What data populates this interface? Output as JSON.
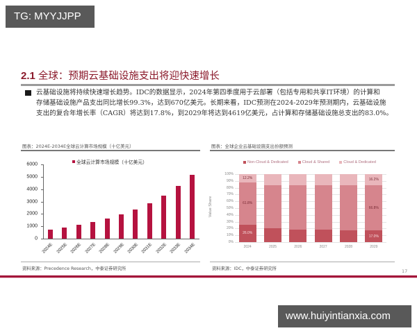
{
  "watermarks": {
    "top": "TG: MYYJJPP",
    "bottom": "www.huiyintianxia.com"
  },
  "header": {
    "section_number": "2.1",
    "title": "全球：预期云基础设施支出将迎快速增长"
  },
  "paragraph": {
    "lines": [
      "云基础设施将持续快速增长趋势。IDC的数据显示，2024年第四季度用于云部署（包括专用和共享IT环境）的计算和",
      "存储基础设施产品支出同比增长99.3%，达到670亿美元。长期来看，IDC预测在2024-2029年预测期内，云基础设施",
      "支出的复合年增长率（CAGR）将达到17.8%，到2029年将达到4619亿美元，占计算和存储基础设施总支出的83.0%。"
    ]
  },
  "left_panel": {
    "title": "图表：2024E-2034E全球云计算市场规模（十亿美元）",
    "source": "资料来源：Precedence Research，中泰证券研究所"
  },
  "right_panel": {
    "title": "图表：全球企业云基础设施支出份额预测",
    "source": "资料来源：IDC，中泰证券研究所"
  },
  "page_number": "17",
  "colors": {
    "brand_red": "#a3163a",
    "bar_red": "#b5123f",
    "non_cloud": "#c0515b",
    "cloud_shared": "#d6858d",
    "cloud_dedicated": "#e9b6bb"
  },
  "chart_data": [
    {
      "type": "bar",
      "title": "2024E-2034E全球云计算市场规模（十亿美元）",
      "xlabel": "",
      "ylabel": "",
      "legend": [
        "全球云计算市场规模（十亿美元）"
      ],
      "legend_position": "top",
      "grid": false,
      "ylim": [
        0,
        6000
      ],
      "yticks": [
        0,
        1000,
        2000,
        3000,
        4000,
        5000,
        6000
      ],
      "yticks_labels": [
        "0",
        "1000",
        "2000",
        "3000",
        "4000",
        "5000",
        "6000"
      ],
      "categories": [
        "2024E",
        "2025E",
        "2026E",
        "2027E",
        "2028E",
        "2029E",
        "2030E",
        "2031E",
        "2032E",
        "2033E",
        "2034E"
      ],
      "values": [
        730,
        900,
        1110,
        1330,
        1630,
        1970,
        2360,
        2870,
        3480,
        4270,
        5170
      ]
    },
    {
      "type": "bar",
      "stacked": true,
      "title": "全球企业云基础设施支出份额预测",
      "xlabel": "",
      "ylabel": "Value Share",
      "legend_position": "top",
      "grid": true,
      "ylim": [
        0,
        100
      ],
      "yticks_labels": [
        "0%",
        "10%",
        "20%",
        "30%",
        "40%",
        "50%",
        "60%",
        "70%",
        "80%",
        "90%",
        "100%"
      ],
      "categories": [
        "2024",
        "2025",
        "2026",
        "2027",
        "2028",
        "2029"
      ],
      "series": [
        {
          "name": "Non-Cloud & Dedicated",
          "values": [
            26.0,
            20.0,
            18.8,
            18.0,
            17.5,
            17.0
          ],
          "labels": [
            "26.0%",
            "",
            "",
            "",
            "",
            "17.0%"
          ]
        },
        {
          "name": "Cloud & Shared",
          "values": [
            61.8,
            63.5,
            64.5,
            65.2,
            66.0,
            66.8
          ],
          "labels": [
            "61.8%",
            "",
            "",
            "",
            "",
            "66.8%"
          ]
        },
        {
          "name": "Cloud & Dedicated",
          "values": [
            12.2,
            16.5,
            16.7,
            16.8,
            16.5,
            16.2
          ],
          "labels": [
            "12.2%",
            "",
            "",
            "",
            "",
            "16.2%"
          ]
        }
      ]
    }
  ]
}
